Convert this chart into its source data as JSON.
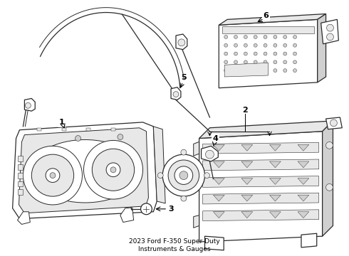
{
  "title": "2023 Ford F-350 Super Duty\nInstruments & Gauges",
  "title_fontsize": 6.5,
  "background_color": "#ffffff",
  "line_color": "#2a2a2a",
  "label_color": "#000000",
  "label_fontsize": 8,
  "label_fontweight": "bold",
  "figsize": [
    4.9,
    3.6
  ],
  "dpi": 100
}
